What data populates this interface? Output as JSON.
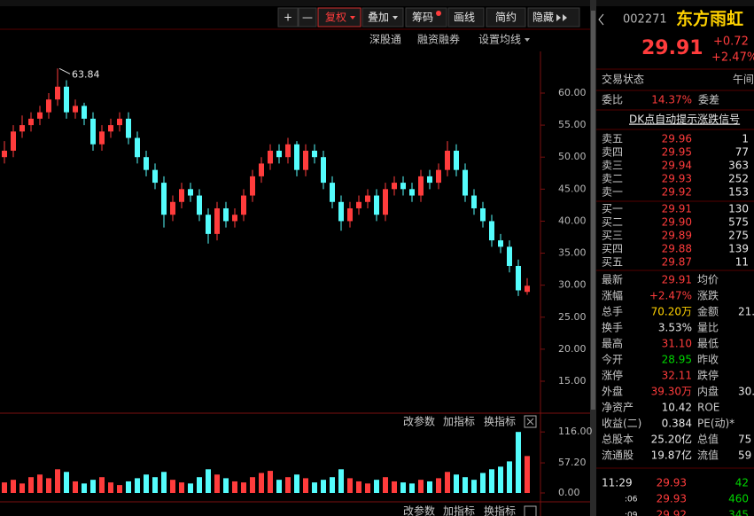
{
  "toolbar": {
    "buttons": [
      "+",
      "—",
      "复权",
      "叠加",
      "筹码",
      "画线",
      "简约",
      "隐藏"
    ]
  },
  "subbar": [
    "深股通",
    "融资融券",
    "设置均线"
  ],
  "indicator_bar": [
    "改参数",
    "加指标",
    "换指标"
  ],
  "chart_data": [
    {
      "type": "candlestick",
      "annotation": "63.84",
      "up_color": "#ff3c3c",
      "down_color": "#54fcfc",
      "open": [
        50,
        51,
        54,
        55,
        56,
        57,
        59,
        61,
        57,
        58,
        56,
        52,
        54,
        55,
        56,
        53,
        50,
        48,
        46,
        41,
        43,
        45,
        44,
        41,
        38,
        42,
        40,
        41,
        44,
        47,
        49,
        51,
        50,
        52,
        48,
        51,
        50,
        46,
        43,
        40,
        42,
        43,
        44,
        41,
        45,
        46,
        45,
        44,
        47,
        46,
        48,
        51,
        48,
        44,
        42,
        40,
        37,
        36,
        33,
        28.95
      ],
      "high": [
        52.5,
        55,
        56.5,
        57,
        58,
        60,
        63.84,
        62,
        59,
        58.5,
        57,
        55,
        56,
        57,
        57,
        54,
        51,
        49,
        47,
        44,
        46,
        46,
        45,
        42,
        43,
        43,
        42,
        45,
        48,
        50,
        52,
        52,
        53,
        52.5,
        52,
        52,
        51,
        47,
        44,
        43,
        44,
        45,
        45,
        46,
        47,
        47,
        46,
        48,
        48,
        49,
        52.5,
        52,
        49,
        45,
        43,
        41,
        38,
        37,
        34,
        31.1
      ],
      "low": [
        49,
        50,
        53,
        54,
        55,
        56,
        58,
        56,
        56,
        55,
        51,
        51,
        53,
        54,
        52,
        49,
        47,
        45,
        39,
        40,
        42,
        43,
        40,
        36.5,
        37,
        39,
        39,
        40,
        43,
        46,
        48,
        49,
        49,
        47,
        47,
        49,
        45,
        42,
        38.5,
        39,
        41,
        42,
        40,
        40,
        44,
        44,
        43,
        43,
        45,
        45,
        47,
        47,
        43,
        41,
        39,
        36,
        35,
        32,
        28.3,
        28.5
      ],
      "close": [
        51,
        54,
        55,
        56,
        57,
        59,
        61,
        57,
        58,
        56,
        52,
        54,
        55,
        56,
        53,
        50,
        48,
        46,
        41,
        43,
        45,
        44,
        41,
        38,
        42,
        40,
        41,
        44,
        47,
        49,
        51,
        50,
        52,
        48,
        51,
        50,
        46,
        43,
        40,
        42,
        43,
        44,
        41,
        45,
        46,
        45,
        44,
        47,
        46,
        48,
        51,
        48,
        44,
        42,
        40,
        37,
        36,
        33,
        29.19,
        29.91
      ],
      "ylim": [
        10.15,
        66.23
      ],
      "yticks": [
        {
          "value": 15,
          "label": "15.00"
        },
        {
          "value": 20,
          "label": "20.00"
        },
        {
          "value": 25,
          "label": "25.00"
        },
        {
          "value": 30,
          "label": "30.00"
        },
        {
          "value": 35,
          "label": "35.00"
        },
        {
          "value": 40,
          "label": "40.00"
        },
        {
          "value": 45,
          "label": "45.00"
        },
        {
          "value": 50,
          "label": "50.00"
        },
        {
          "value": 55,
          "label": "55.00"
        },
        {
          "value": 60,
          "label": "60.00"
        }
      ]
    },
    {
      "type": "bar",
      "up_color": "#ff3c3c",
      "down_color": "#54fcfc",
      "values": [
        20,
        25,
        18,
        30,
        35,
        28,
        45,
        40,
        22,
        18,
        25,
        30,
        20,
        15,
        22,
        28,
        35,
        30,
        40,
        25,
        20,
        18,
        30,
        45,
        35,
        28,
        22,
        20,
        30,
        38,
        42,
        25,
        30,
        35,
        28,
        20,
        25,
        30,
        45,
        28,
        22,
        18,
        25,
        30,
        22,
        20,
        18,
        25,
        22,
        28,
        40,
        35,
        30,
        25,
        38,
        45,
        50,
        60,
        116,
        70.2
      ],
      "ylim": [
        0,
        118
      ],
      "yticks": [
        {
          "value": 0,
          "label": "0.00"
        },
        {
          "value": 57.2,
          "label": "57.20"
        },
        {
          "value": 116,
          "label": "116.00"
        }
      ]
    }
  ],
  "quote": {
    "code": "002271",
    "name": "东方雨虹",
    "price": "29.91",
    "change": "+0.72",
    "change_pct": "+2.47%",
    "status_label": "交易状态",
    "status": "午间",
    "ratio_label": "委比",
    "ratio": "14.37%",
    "diff_label": "委差",
    "signal": "DK点自动提示涨跌信号",
    "asks": [
      [
        "卖五",
        "29.96",
        "1"
      ],
      [
        "卖四",
        "29.95",
        "77"
      ],
      [
        "卖三",
        "29.94",
        "363"
      ],
      [
        "卖二",
        "29.93",
        "252"
      ],
      [
        "卖一",
        "29.92",
        "153"
      ]
    ],
    "bids": [
      [
        "买一",
        "29.91",
        "130"
      ],
      [
        "买二",
        "29.90",
        "575"
      ],
      [
        "买三",
        "29.89",
        "275"
      ],
      [
        "买四",
        "29.88",
        "139"
      ],
      [
        "买五",
        "29.87",
        "11"
      ]
    ],
    "stats": [
      [
        "最新",
        "29.91",
        "均价"
      ],
      [
        "涨幅",
        "+2.47%",
        "涨跌"
      ],
      [
        "总手",
        "70.20万",
        "金额",
        "21."
      ],
      [
        "换手",
        "3.53%",
        "量比"
      ],
      [
        "最高",
        "31.10",
        "最低"
      ],
      [
        "今开",
        "28.95",
        "昨收"
      ],
      [
        "涨停",
        "32.11",
        "跌停"
      ],
      [
        "外盘",
        "39.30万",
        "内盘",
        "30."
      ],
      [
        "净资产",
        "10.42",
        "ROE"
      ],
      [
        "收益(二)",
        "0.384",
        "PE(动)*"
      ],
      [
        "总股本",
        "25.20亿",
        "总值",
        "75"
      ],
      [
        "流通股",
        "19.87亿",
        "流值",
        "59"
      ]
    ],
    "ticks": [
      [
        "11:29",
        "29.93",
        "42"
      ],
      [
        ":06",
        "29.93",
        "460"
      ],
      [
        ":09",
        "29.92",
        "345"
      ]
    ]
  }
}
